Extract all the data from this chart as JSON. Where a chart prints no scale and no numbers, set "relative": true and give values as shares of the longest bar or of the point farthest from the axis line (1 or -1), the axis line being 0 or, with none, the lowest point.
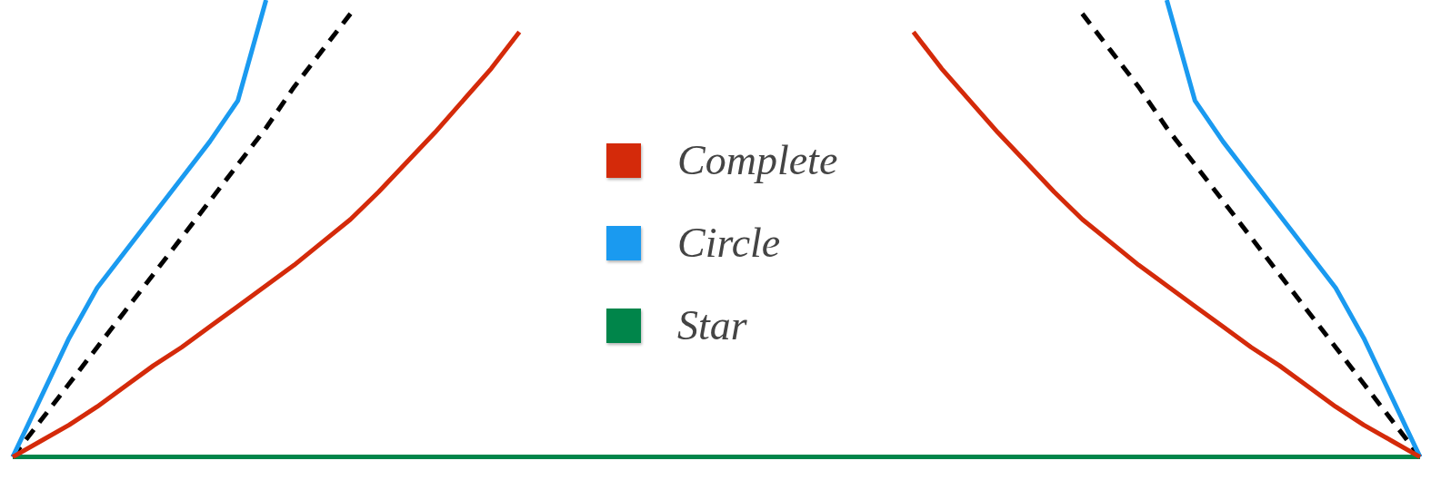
{
  "chart_data": {
    "type": "line",
    "relative": true,
    "legend": "center",
    "marker": "none",
    "tick_labels": false,
    "categories": [
      null,
      null,
      null,
      null,
      null,
      null,
      null,
      null,
      null,
      null,
      null,
      null,
      null,
      null,
      null,
      null,
      null,
      null,
      null,
      null,
      null,
      null,
      null,
      null,
      null,
      null,
      null,
      null,
      null,
      null,
      null,
      null,
      null,
      null,
      null,
      null,
      null,
      null,
      null,
      null,
      null,
      null,
      null,
      null,
      null,
      null,
      null,
      null,
      null,
      null,
      null
    ],
    "series": [
      {
        "name": "Complete",
        "color": "#d42a0a",
        "values": [
          0,
          0.035,
          0.07,
          0.11,
          0.155,
          0.2,
          0.24,
          0.285,
          0.33,
          0.375,
          0.42,
          0.47,
          0.52,
          0.58,
          0.645,
          0.71,
          0.78,
          0.85,
          0.93,
          null,
          null,
          null,
          null,
          null,
          null,
          null,
          null,
          null,
          null,
          null,
          null,
          null,
          0.93,
          0.85,
          0.78,
          0.71,
          0.645,
          0.58,
          0.52,
          0.47,
          0.42,
          0.375,
          0.33,
          0.285,
          0.24,
          0.2,
          0.155,
          0.11,
          0.07,
          0.035,
          0
        ]
      },
      {
        "name": "Circle",
        "color": "#1a9af0",
        "values": [
          0,
          0.13,
          0.26,
          0.37,
          0.45,
          0.53,
          0.61,
          0.69,
          0.78,
          1,
          null,
          null,
          null,
          null,
          null,
          null,
          null,
          null,
          null,
          null,
          null,
          null,
          null,
          null,
          null,
          null,
          null,
          null,
          null,
          null,
          null,
          null,
          null,
          null,
          null,
          null,
          null,
          null,
          null,
          null,
          null,
          1,
          0.78,
          0.69,
          0.61,
          0.53,
          0.45,
          0.37,
          0.26,
          0.13,
          0
        ]
      },
      {
        "name": "Star",
        "color": "#00854a",
        "values": [
          0,
          0,
          0,
          0,
          0,
          0,
          0,
          0,
          0,
          0,
          0,
          0,
          0,
          0,
          0,
          0,
          0,
          0,
          0,
          0,
          0,
          0,
          0,
          0,
          0,
          0,
          0,
          0,
          0,
          0,
          0,
          0,
          0,
          0,
          0,
          0,
          0,
          0,
          0,
          0,
          0,
          0,
          0,
          0,
          0,
          0,
          0,
          0,
          0,
          0,
          0
        ]
      },
      {
        "color": "#000000",
        "line_style": "dashed",
        "values": [
          0,
          0.08,
          0.16,
          0.24,
          0.32,
          0.4,
          0.48,
          0.56,
          0.64,
          0.72,
          0.81,
          0.89,
          0.97,
          null,
          null,
          null,
          null,
          null,
          null,
          null,
          null,
          null,
          null,
          null,
          null,
          null,
          null,
          null,
          null,
          null,
          null,
          null,
          null,
          null,
          null,
          null,
          null,
          null,
          0.97,
          0.89,
          0.81,
          0.72,
          0.64,
          0.56,
          0.48,
          0.4,
          0.32,
          0.24,
          0.16,
          0.08,
          0
        ]
      }
    ]
  }
}
